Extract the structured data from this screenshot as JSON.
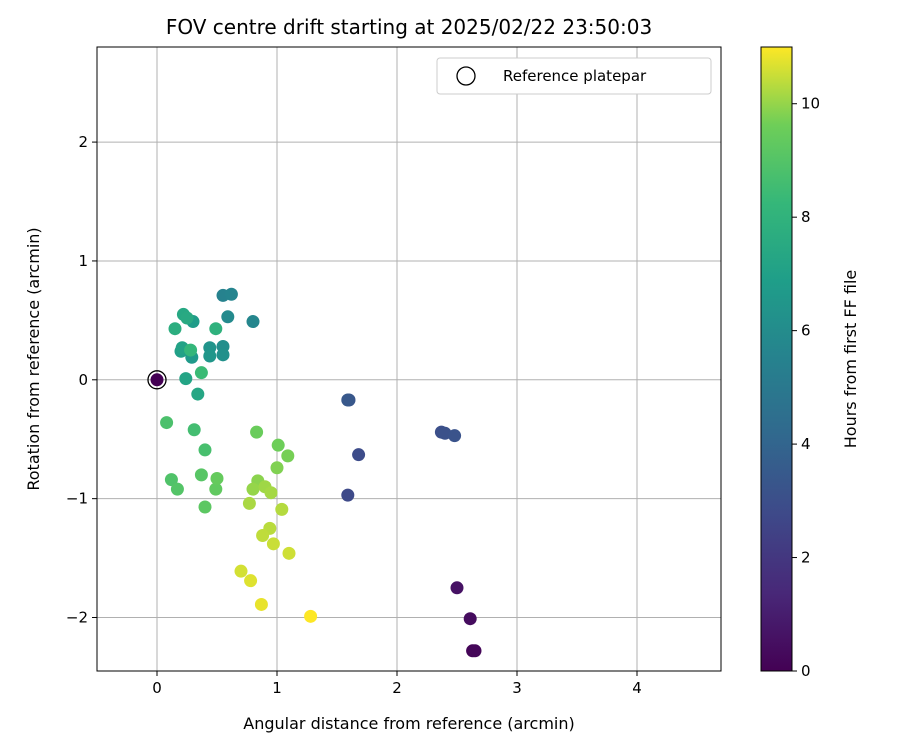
{
  "chart_data": {
    "type": "scatter",
    "title": "FOV centre drift starting at 2025/02/22 23:50:03",
    "xlabel": "Angular distance from reference (arcmin)",
    "ylabel": "Rotation from reference (arcmin)",
    "xlim": [
      -0.5,
      4.7
    ],
    "ylim": [
      -2.45,
      2.8
    ],
    "xticks": [
      0,
      1,
      2,
      3,
      4
    ],
    "yticks": [
      -2,
      -1,
      0,
      1,
      2
    ],
    "grid": true,
    "legend": {
      "position": "top-right",
      "entries": [
        "Reference platepar"
      ]
    },
    "reference_point": {
      "x": 0,
      "y": 0
    },
    "colorbar": {
      "label": "Hours from first FF file",
      "range": [
        0,
        11
      ],
      "ticks": [
        0,
        2,
        4,
        6,
        8,
        10
      ],
      "colormap": "viridis"
    },
    "points": [
      {
        "x": 0.0,
        "y": 0.0,
        "c": 0.0
      },
      {
        "x": 2.63,
        "y": -2.28,
        "c": 0.1
      },
      {
        "x": 2.65,
        "y": -2.28,
        "c": 0.2
      },
      {
        "x": 2.61,
        "y": -2.01,
        "c": 0.4
      },
      {
        "x": 2.5,
        "y": -1.75,
        "c": 0.6
      },
      {
        "x": 1.59,
        "y": -0.97,
        "c": 2.8
      },
      {
        "x": 1.68,
        "y": -0.63,
        "c": 2.9
      },
      {
        "x": 2.37,
        "y": -0.44,
        "c": 3.0
      },
      {
        "x": 2.4,
        "y": -0.45,
        "c": 3.1
      },
      {
        "x": 2.48,
        "y": -0.47,
        "c": 3.2
      },
      {
        "x": 1.6,
        "y": -0.17,
        "c": 3.3
      },
      {
        "x": 1.59,
        "y": -0.17,
        "c": 3.4
      },
      {
        "x": 0.55,
        "y": 0.71,
        "c": 5.5
      },
      {
        "x": 0.62,
        "y": 0.72,
        "c": 5.6
      },
      {
        "x": 0.8,
        "y": 0.49,
        "c": 5.7
      },
      {
        "x": 0.59,
        "y": 0.53,
        "c": 5.9
      },
      {
        "x": 0.55,
        "y": 0.28,
        "c": 6.1
      },
      {
        "x": 0.55,
        "y": 0.21,
        "c": 6.2
      },
      {
        "x": 0.44,
        "y": 0.27,
        "c": 6.4
      },
      {
        "x": 0.44,
        "y": 0.2,
        "c": 6.5
      },
      {
        "x": 0.29,
        "y": 0.19,
        "c": 6.7
      },
      {
        "x": 0.3,
        "y": 0.49,
        "c": 6.8
      },
      {
        "x": 0.2,
        "y": 0.24,
        "c": 7.0
      },
      {
        "x": 0.21,
        "y": 0.27,
        "c": 7.1
      },
      {
        "x": 0.24,
        "y": 0.01,
        "c": 7.2
      },
      {
        "x": 0.34,
        "y": -0.12,
        "c": 7.3
      },
      {
        "x": 0.22,
        "y": 0.55,
        "c": 7.4
      },
      {
        "x": 0.25,
        "y": 0.52,
        "c": 7.5
      },
      {
        "x": 0.15,
        "y": 0.43,
        "c": 7.7
      },
      {
        "x": 0.49,
        "y": 0.43,
        "c": 7.9
      },
      {
        "x": 0.28,
        "y": 0.25,
        "c": 8.2
      },
      {
        "x": 0.37,
        "y": 0.06,
        "c": 8.4
      },
      {
        "x": 0.31,
        "y": -0.42,
        "c": 8.6
      },
      {
        "x": 0.4,
        "y": -0.59,
        "c": 8.7
      },
      {
        "x": 0.08,
        "y": -0.36,
        "c": 8.8
      },
      {
        "x": 0.12,
        "y": -0.84,
        "c": 8.9
      },
      {
        "x": 0.17,
        "y": -0.92,
        "c": 9.0
      },
      {
        "x": 0.37,
        "y": -0.8,
        "c": 9.1
      },
      {
        "x": 0.4,
        "y": -1.07,
        "c": 9.2
      },
      {
        "x": 0.49,
        "y": -0.92,
        "c": 9.3
      },
      {
        "x": 0.5,
        "y": -0.83,
        "c": 9.4
      },
      {
        "x": 0.83,
        "y": -0.44,
        "c": 9.5
      },
      {
        "x": 1.01,
        "y": -0.55,
        "c": 9.6
      },
      {
        "x": 1.09,
        "y": -0.64,
        "c": 9.7
      },
      {
        "x": 1.0,
        "y": -0.74,
        "c": 9.8
      },
      {
        "x": 0.84,
        "y": -0.85,
        "c": 9.9
      },
      {
        "x": 0.8,
        "y": -0.92,
        "c": 10.0
      },
      {
        "x": 0.9,
        "y": -0.9,
        "c": 10.1
      },
      {
        "x": 0.95,
        "y": -0.95,
        "c": 10.15
      },
      {
        "x": 0.77,
        "y": -1.04,
        "c": 10.2
      },
      {
        "x": 1.04,
        "y": -1.09,
        "c": 10.3
      },
      {
        "x": 0.94,
        "y": -1.25,
        "c": 10.35
      },
      {
        "x": 0.88,
        "y": -1.31,
        "c": 10.4
      },
      {
        "x": 0.97,
        "y": -1.38,
        "c": 10.5
      },
      {
        "x": 1.1,
        "y": -1.46,
        "c": 10.55
      },
      {
        "x": 0.7,
        "y": -1.61,
        "c": 10.6
      },
      {
        "x": 0.78,
        "y": -1.69,
        "c": 10.7
      },
      {
        "x": 0.87,
        "y": -1.89,
        "c": 10.8
      },
      {
        "x": 1.28,
        "y": -1.99,
        "c": 11.0
      }
    ]
  }
}
